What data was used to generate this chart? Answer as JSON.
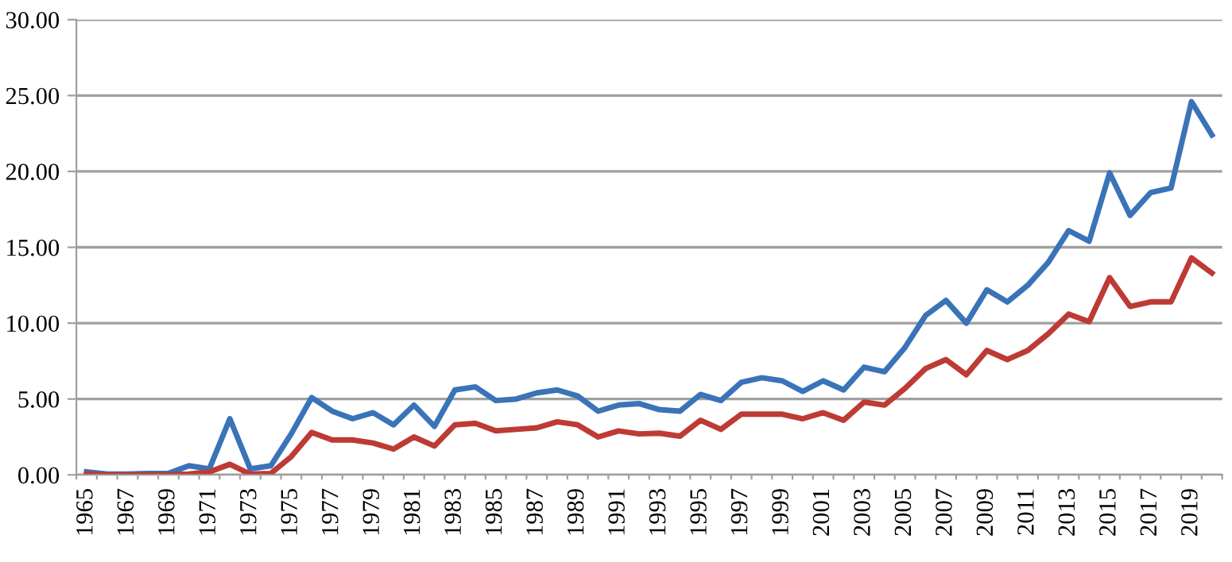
{
  "chart_data": {
    "type": "line",
    "categories": [
      "1965",
      null,
      "1967",
      null,
      "1969",
      null,
      "1971",
      null,
      "1973",
      null,
      "1975",
      null,
      "1977",
      null,
      "1979",
      null,
      "1981",
      null,
      "1983",
      null,
      "1985",
      null,
      "1987",
      null,
      "1989",
      null,
      "1991",
      null,
      "1993",
      null,
      "1995",
      null,
      "1997",
      null,
      "1999",
      null,
      "2001",
      null,
      "2003",
      null,
      "2005",
      null,
      "2007",
      null,
      "2009",
      null,
      "2011",
      null,
      "2013",
      null,
      "2015",
      null,
      "2017",
      null,
      "2019",
      null
    ],
    "series": [
      {
        "color": "#3a73b8",
        "values": [
          0.2,
          0.05,
          0.05,
          0.1,
          0.1,
          0.6,
          0.4,
          3.7,
          0.4,
          0.6,
          2.7,
          5.1,
          4.2,
          3.7,
          4.1,
          3.3,
          4.6,
          3.2,
          5.6,
          5.8,
          4.9,
          5.0,
          5.4,
          5.6,
          5.2,
          4.2,
          4.6,
          4.7,
          4.3,
          4.2,
          5.3,
          4.9,
          6.1,
          6.4,
          6.2,
          5.5,
          6.2,
          5.6,
          7.1,
          6.8,
          8.4,
          10.5,
          11.5,
          10.0,
          12.2,
          11.4,
          12.5,
          14.0,
          16.1,
          15.4,
          19.9,
          17.1,
          18.6,
          18.9,
          24.6,
          22.4
        ]
      },
      {
        "color": "#be3a35",
        "values": [
          0.05,
          0,
          0,
          0,
          0,
          0.05,
          0.2,
          0.7,
          0.05,
          0.1,
          1.2,
          2.8,
          2.3,
          2.3,
          2.1,
          1.7,
          2.5,
          1.9,
          3.3,
          3.4,
          2.9,
          3.0,
          3.1,
          3.5,
          3.3,
          2.5,
          2.9,
          2.7,
          2.75,
          2.55,
          3.6,
          3.0,
          4.0,
          4.0,
          4.0,
          3.7,
          4.1,
          3.6,
          4.8,
          4.6,
          5.7,
          7.0,
          7.6,
          6.6,
          8.2,
          7.6,
          8.2,
          9.3,
          10.6,
          10.1,
          13.0,
          11.1,
          11.4,
          11.4,
          14.3,
          13.3
        ]
      }
    ],
    "ylim": [
      0,
      30
    ],
    "yticks": [
      {
        "value": 0,
        "label": "0.00"
      },
      {
        "value": 5,
        "label": "5.00"
      },
      {
        "value": 10,
        "label": "10.00"
      },
      {
        "value": 15,
        "label": "15.00"
      },
      {
        "value": 20,
        "label": "20.00"
      },
      {
        "value": 25,
        "label": "25.00"
      },
      {
        "value": 30,
        "label": "30.00"
      }
    ],
    "grid": "y",
    "marker": "none",
    "line_style": "solid"
  }
}
